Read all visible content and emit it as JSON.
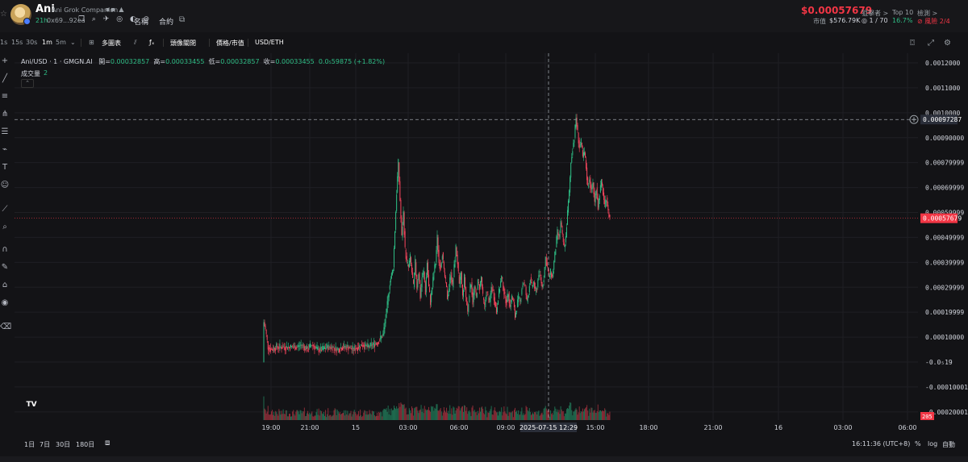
{
  "header": {
    "token_name": "Ani",
    "token_full_name": "Ani Grok Companion",
    "age": "21h",
    "address": "0x69...92ea",
    "name_button": "名稱",
    "contract_button": "合約",
    "price": "$0.00057679",
    "market_cap_label": "市值",
    "market_cap_value": "$576.79K",
    "stats": [
      {
        "label": "狙擊者 >",
        "value": "◎ 1 / 70",
        "color": "#e0a526"
      },
      {
        "label": "Top 10",
        "value": "16.7%",
        "color": "#2ebd85"
      },
      {
        "label": "檢測 >",
        "value": "⊘ 風險 2/4",
        "color": "#f23645"
      }
    ]
  },
  "toolbar": {
    "intervals": [
      "1s",
      "15s",
      "30s",
      "1m",
      "5m"
    ],
    "active_interval": "1m",
    "indicators": "多圖表",
    "fx": "ƒₓ",
    "layout": "頭像關閉",
    "price_toggle": "價格/市值",
    "currency": "USD/ETH"
  },
  "legend": {
    "symbol": "Ani/USD · 1 · GMGN.AI",
    "open_label": "開=",
    "open": "0.00032857",
    "high_label": "高=",
    "high": "0.00033455",
    "low_label": "低=",
    "low": "0.00032857",
    "close_label": "收=",
    "close": "0.00033455",
    "change": "0.0₅59875 (+1.82%)",
    "volume_label": "成交量",
    "volume_value": "2"
  },
  "bottom": {
    "ranges": [
      "1日",
      "7日",
      "30日",
      "180日"
    ],
    "time": "16:11:36 (UTC+8)",
    "percent": "%",
    "log": "log",
    "auto": "自動"
  },
  "chart_data": {
    "type": "candlestick",
    "y_axis_ticks": [
      "0.0012000",
      "0.0011000",
      "0.0010000",
      "0.00090000",
      "0.00079999",
      "0.00069999",
      "0.00059999",
      "0.00049999",
      "0.00039999",
      "0.00029999",
      "0.00019999",
      "0.00010000",
      "-0.0₅19",
      "-0.00010001",
      "-0.00020001"
    ],
    "y_axis_values": [
      0.0012,
      0.0011,
      0.001,
      0.0009,
      0.0008,
      0.0007,
      0.0006,
      0.0005,
      0.0004,
      0.0003,
      0.0002,
      0.0001,
      0,
      -0.0001,
      -0.0002
    ],
    "x_axis_ticks": [
      "19:00",
      "21:00",
      "15",
      "03:00",
      "06:00",
      "09:00",
      "12:00",
      "15:00",
      "18:00",
      "21:00",
      "16",
      "03:00",
      "06:00"
    ],
    "crosshair_x_label": "2025-07-15   12:29",
    "crosshair_price": "0.00097287",
    "crosshair_price_value": 0.00097287,
    "current_price": "0.00057679",
    "current_price_value": 0.00057679,
    "volume_axis_label": "205",
    "price_path": [
      [
        0,
        0.0
      ],
      [
        1,
        0.00016
      ],
      [
        3,
        0.00013
      ],
      [
        6,
        6e-05
      ],
      [
        10,
        5e-05
      ],
      [
        16,
        6e-05
      ],
      [
        22,
        6e-05
      ],
      [
        28,
        6e-05
      ],
      [
        34,
        6e-05
      ],
      [
        40,
        6e-05
      ],
      [
        46,
        7e-05
      ],
      [
        52,
        5e-05
      ],
      [
        58,
        7e-05
      ],
      [
        64,
        5e-05
      ],
      [
        70,
        5e-05
      ],
      [
        76,
        6e-05
      ],
      [
        82,
        6e-05
      ],
      [
        88,
        5e-05
      ],
      [
        94,
        6e-05
      ],
      [
        100,
        6e-05
      ],
      [
        106,
        5e-05
      ],
      [
        112,
        6e-05
      ],
      [
        118,
        7e-05
      ],
      [
        124,
        6e-05
      ],
      [
        130,
        7e-05
      ],
      [
        136,
        8e-05
      ],
      [
        142,
        0.00011
      ],
      [
        146,
        0.0002
      ],
      [
        150,
        0.00032
      ],
      [
        154,
        0.00038
      ],
      [
        158,
        0.00068
      ],
      [
        160,
        0.0008
      ],
      [
        162,
        0.00065
      ],
      [
        164,
        0.0005
      ],
      [
        166,
        0.0006
      ],
      [
        168,
        0.00045
      ],
      [
        170,
        0.0004
      ],
      [
        172,
        0.00038
      ],
      [
        174,
        0.00042
      ],
      [
        176,
        0.00036
      ],
      [
        178,
        0.0003
      ],
      [
        180,
        0.0004
      ],
      [
        182,
        0.0003
      ],
      [
        184,
        0.00036
      ],
      [
        186,
        0.00026
      ],
      [
        188,
        0.00034
      ],
      [
        190,
        0.00036
      ],
      [
        192,
        0.00028
      ],
      [
        194,
        0.0004
      ],
      [
        196,
        0.0003
      ],
      [
        198,
        0.00024
      ],
      [
        200,
        0.0003
      ],
      [
        202,
        0.00036
      ],
      [
        204,
        0.0004
      ],
      [
        206,
        0.0005
      ],
      [
        208,
        0.0004
      ],
      [
        210,
        0.00038
      ],
      [
        212,
        0.00044
      ],
      [
        214,
        0.00036
      ],
      [
        216,
        0.00032
      ],
      [
        218,
        0.00026
      ],
      [
        220,
        0.0003
      ],
      [
        222,
        0.00036
      ],
      [
        224,
        0.0003
      ],
      [
        226,
        0.00038
      ],
      [
        228,
        0.00046
      ],
      [
        230,
        0.0004
      ],
      [
        232,
        0.0003
      ],
      [
        234,
        0.00036
      ],
      [
        236,
        0.00026
      ],
      [
        238,
        0.00034
      ],
      [
        240,
        0.00026
      ],
      [
        242,
        0.0002
      ],
      [
        244,
        0.00028
      ],
      [
        246,
        0.00032
      ],
      [
        248,
        0.00024
      ],
      [
        250,
        0.0003
      ],
      [
        252,
        0.00026
      ],
      [
        254,
        0.00032
      ],
      [
        256,
        0.0003
      ],
      [
        258,
        0.00034
      ],
      [
        260,
        0.00026
      ],
      [
        262,
        0.00022
      ],
      [
        264,
        0.00028
      ],
      [
        266,
        0.00026
      ],
      [
        268,
        0.00024
      ],
      [
        270,
        0.0003
      ],
      [
        272,
        0.00028
      ],
      [
        274,
        0.00024
      ],
      [
        276,
        0.0002
      ],
      [
        278,
        0.00026
      ],
      [
        280,
        0.0003
      ],
      [
        282,
        0.00034
      ],
      [
        284,
        0.0003
      ],
      [
        286,
        0.00026
      ],
      [
        288,
        0.00024
      ],
      [
        290,
        0.00028
      ],
      [
        292,
        0.00022
      ],
      [
        294,
        0.00026
      ],
      [
        296,
        0.00024
      ],
      [
        298,
        0.00018
      ],
      [
        300,
        0.00022
      ],
      [
        302,
        0.00026
      ],
      [
        304,
        0.00024
      ],
      [
        306,
        0.0003
      ],
      [
        308,
        0.00032
      ],
      [
        310,
        0.0003
      ],
      [
        312,
        0.00024
      ],
      [
        314,
        0.00028
      ],
      [
        316,
        0.00034
      ],
      [
        318,
        0.0003
      ],
      [
        320,
        0.00032
      ],
      [
        322,
        0.00028
      ],
      [
        324,
        0.0003
      ],
      [
        326,
        0.00036
      ],
      [
        328,
        0.00034
      ],
      [
        330,
        0.0003
      ],
      [
        332,
        0.00034
      ],
      [
        334,
        0.00042
      ],
      [
        336,
        0.00038
      ],
      [
        338,
        0.00034
      ],
      [
        340,
        0.00036
      ],
      [
        342,
        0.00034
      ],
      [
        344,
        0.0004
      ],
      [
        346,
        0.00046
      ],
      [
        348,
        0.00052
      ],
      [
        350,
        0.0005
      ],
      [
        352,
        0.00056
      ],
      [
        354,
        0.0005
      ],
      [
        356,
        0.00046
      ],
      [
        358,
        0.0005
      ],
      [
        360,
        0.0006
      ],
      [
        362,
        0.00068
      ],
      [
        364,
        0.0008
      ],
      [
        366,
        0.00086
      ],
      [
        368,
        0.0009
      ],
      [
        370,
        0.00098
      ],
      [
        372,
        0.00092
      ],
      [
        374,
        0.00086
      ],
      [
        376,
        0.00088
      ],
      [
        378,
        0.00082
      ],
      [
        380,
        0.00084
      ],
      [
        382,
        0.00078
      ],
      [
        384,
        0.0007
      ],
      [
        386,
        0.00074
      ],
      [
        388,
        0.00068
      ],
      [
        390,
        0.00072
      ],
      [
        392,
        0.00064
      ],
      [
        394,
        0.0007
      ],
      [
        396,
        0.00062
      ],
      [
        398,
        0.00068
      ],
      [
        400,
        0.00072
      ],
      [
        402,
        0.00068
      ],
      [
        404,
        0.00062
      ],
      [
        406,
        0.00066
      ],
      [
        408,
        0.0006
      ],
      [
        410,
        0.00058
      ]
    ]
  }
}
